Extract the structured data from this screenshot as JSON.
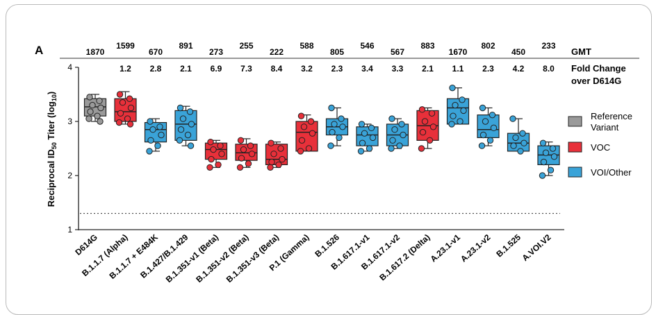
{
  "chart_data": {
    "type": "box",
    "panel_label": "A",
    "ylabel": "Reciprocal ID50 Titer (log10)",
    "ylabel_parts": {
      "pre": "Reciprocal ID",
      "sub1": "50",
      "mid": " Titer (log",
      "sub2": "10",
      "post": ")"
    },
    "ylim": [
      1,
      4
    ],
    "yticks": [
      "1",
      "2",
      "3",
      "4"
    ],
    "reference_line": 1.3,
    "gmt_header": "GMT",
    "fold_header_line1": "Fold Change",
    "fold_header_line2": "over D614G",
    "legend": [
      {
        "label_lines": [
          "Reference",
          "Variant"
        ],
        "color": "#9a9a9a"
      },
      {
        "label_lines": [
          "VOC"
        ],
        "color": "#e8303a"
      },
      {
        "label_lines": [
          "VOI/Other"
        ],
        "color": "#3aa3d8"
      }
    ],
    "categories": [
      "D614G",
      "B.1.1.7 (Alpha)",
      "B.1.1.7 + E484K",
      "B.1.427/B.1.429",
      "B.1.351-v1 (Beta)",
      "B.1.351-v2 (Beta)",
      "B.1.351-v3 (Beta)",
      "P.1 (Gamma)",
      "B.1.526",
      "B.1.617.1-v1",
      "B.1.617.1-v2",
      "B.1.617.2 (Delta)",
      "A.23.1-v1",
      "A.23.1-v2",
      "B.1.525",
      "A.VOI.V2"
    ],
    "group": [
      "Reference Variant",
      "VOC",
      "VOI/Other",
      "VOI/Other",
      "VOC",
      "VOC",
      "VOC",
      "VOC",
      "VOI/Other",
      "VOI/Other",
      "VOI/Other",
      "VOC",
      "VOI/Other",
      "VOI/Other",
      "VOI/Other",
      "VOI/Other"
    ],
    "gmt": [
      "1870",
      "1599",
      "670",
      "891",
      "273",
      "255",
      "222",
      "588",
      "805",
      "546",
      "567",
      "883",
      "1670",
      "802",
      "450",
      "233"
    ],
    "fold_change": [
      "",
      "1.2",
      "2.8",
      "2.1",
      "6.9",
      "7.3",
      "8.4",
      "3.2",
      "2.3",
      "3.4",
      "3.3",
      "2.1",
      "1.1",
      "2.3",
      "4.2",
      "8.0"
    ],
    "boxes": [
      {
        "min": 3.0,
        "q1": 3.1,
        "median": 3.27,
        "q3": 3.42,
        "max": 3.5
      },
      {
        "min": 2.95,
        "q1": 3.0,
        "median": 3.18,
        "q3": 3.42,
        "max": 3.55
      },
      {
        "min": 2.45,
        "q1": 2.62,
        "median": 2.85,
        "q3": 2.98,
        "max": 3.05
      },
      {
        "min": 2.55,
        "q1": 2.65,
        "median": 2.95,
        "q3": 3.2,
        "max": 3.28
      },
      {
        "min": 2.15,
        "q1": 2.3,
        "median": 2.48,
        "q3": 2.6,
        "max": 2.65
      },
      {
        "min": 2.15,
        "q1": 2.28,
        "median": 2.42,
        "q3": 2.58,
        "max": 2.68
      },
      {
        "min": 2.15,
        "q1": 2.2,
        "median": 2.3,
        "q3": 2.58,
        "max": 2.62
      },
      {
        "min": 2.45,
        "q1": 2.45,
        "median": 2.8,
        "q3": 3.0,
        "max": 3.12
      },
      {
        "min": 2.55,
        "q1": 2.75,
        "median": 2.9,
        "q3": 3.05,
        "max": 3.25
      },
      {
        "min": 2.45,
        "q1": 2.55,
        "median": 2.75,
        "q3": 2.9,
        "max": 2.95
      },
      {
        "min": 2.5,
        "q1": 2.55,
        "median": 2.75,
        "q3": 2.95,
        "max": 3.05
      },
      {
        "min": 2.5,
        "q1": 2.65,
        "median": 2.92,
        "q3": 3.2,
        "max": 3.25
      },
      {
        "min": 2.95,
        "q1": 2.95,
        "median": 3.25,
        "q3": 3.42,
        "max": 3.62
      },
      {
        "min": 2.55,
        "q1": 2.7,
        "median": 2.85,
        "q3": 3.12,
        "max": 3.25
      },
      {
        "min": 2.45,
        "q1": 2.45,
        "median": 2.6,
        "q3": 2.78,
        "max": 3.05
      },
      {
        "min": 2.0,
        "q1": 2.2,
        "median": 2.38,
        "q3": 2.55,
        "max": 2.62
      }
    ],
    "points": [
      [
        3.45,
        3.38,
        3.3,
        3.25,
        3.18,
        3.1,
        3.05,
        3.0
      ],
      [
        3.5,
        3.42,
        3.35,
        3.25,
        3.15,
        3.05,
        2.98,
        2.95
      ],
      [
        3.0,
        2.9,
        2.85,
        2.75,
        2.65,
        2.55,
        2.45
      ],
      [
        3.25,
        3.18,
        3.05,
        2.95,
        2.85,
        2.75,
        2.65,
        2.55
      ],
      [
        2.62,
        2.55,
        2.48,
        2.4,
        2.3,
        2.2,
        2.15
      ],
      [
        2.65,
        2.55,
        2.48,
        2.4,
        2.32,
        2.22,
        2.15
      ],
      [
        2.6,
        2.5,
        2.4,
        2.3,
        2.25,
        2.2,
        2.15
      ],
      [
        3.1,
        3.0,
        2.9,
        2.78,
        2.65,
        2.5,
        2.45
      ],
      [
        3.25,
        3.05,
        2.95,
        2.9,
        2.8,
        2.7,
        2.55
      ],
      [
        2.95,
        2.88,
        2.78,
        2.7,
        2.6,
        2.5,
        2.45
      ],
      [
        3.05,
        2.95,
        2.85,
        2.75,
        2.65,
        2.55,
        2.5
      ],
      [
        3.22,
        3.15,
        3.0,
        2.9,
        2.8,
        2.65,
        2.5
      ],
      [
        3.62,
        3.4,
        3.3,
        3.2,
        3.1,
        3.0,
        2.95
      ],
      [
        3.25,
        3.12,
        3.0,
        2.88,
        2.75,
        2.65,
        2.55
      ],
      [
        3.05,
        2.78,
        2.7,
        2.6,
        2.55,
        2.45
      ],
      [
        2.6,
        2.5,
        2.42,
        2.35,
        2.25,
        2.1,
        2.0
      ]
    ]
  },
  "colors": {
    "Reference Variant": "#9a9a9a",
    "VOC": "#e8303a",
    "VOI/Other": "#3aa3d8"
  }
}
